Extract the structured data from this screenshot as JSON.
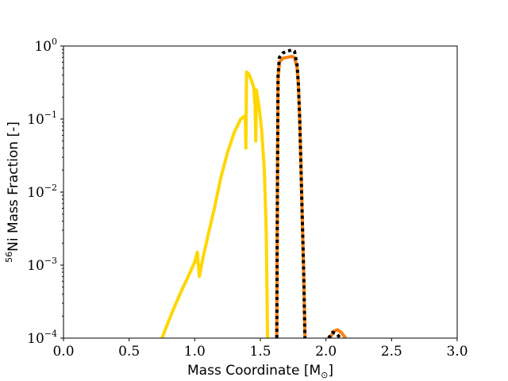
{
  "chart_data": {
    "type": "line",
    "xlabel": "Mass Coordinate [M",
    "xlabel_sub": "⊙",
    "xlabel_close": "]",
    "ylabel_sup": "56",
    "ylabel": "Ni Mass Fraction [-]",
    "xlim": [
      0.0,
      3.0
    ],
    "ylim": [
      0.0001,
      1
    ],
    "yscale": "log",
    "grid": false,
    "x_ticks": [
      {
        "value": 0.0,
        "label": "0.0"
      },
      {
        "value": 0.5,
        "label": "0.5"
      },
      {
        "value": 1.0,
        "label": "1.0"
      },
      {
        "value": 1.5,
        "label": "1.5"
      },
      {
        "value": 2.0,
        "label": "2.0"
      },
      {
        "value": 2.5,
        "label": "2.5"
      },
      {
        "value": 3.0,
        "label": "3.0"
      }
    ],
    "y_ticks": [
      {
        "value": 0.0001,
        "base": "10",
        "exp": "−4"
      },
      {
        "value": 0.001,
        "base": "10",
        "exp": "−3"
      },
      {
        "value": 0.01,
        "base": "10",
        "exp": "−2"
      },
      {
        "value": 0.1,
        "base": "10",
        "exp": "−1"
      },
      {
        "value": 1,
        "base": "10",
        "exp": "0"
      }
    ],
    "series": [
      {
        "color": "#FFD700",
        "style": "solid",
        "points": [
          [
            0.75,
            0.0001
          ],
          [
            0.8,
            0.00017
          ],
          [
            0.85,
            0.00028
          ],
          [
            0.9,
            0.00045
          ],
          [
            0.95,
            0.0007
          ],
          [
            1.0,
            0.0011
          ],
          [
            1.02,
            0.0015
          ],
          [
            1.035,
            0.0007
          ],
          [
            1.06,
            0.0012
          ],
          [
            1.1,
            0.0025
          ],
          [
            1.15,
            0.006
          ],
          [
            1.2,
            0.016
          ],
          [
            1.25,
            0.035
          ],
          [
            1.3,
            0.065
          ],
          [
            1.35,
            0.1
          ],
          [
            1.38,
            0.11
          ],
          [
            1.385,
            0.11
          ],
          [
            1.39,
            0.04
          ],
          [
            1.395,
            0.44
          ],
          [
            1.41,
            0.42
          ],
          [
            1.43,
            0.35
          ],
          [
            1.45,
            0.27
          ],
          [
            1.46,
            0.15
          ],
          [
            1.465,
            0.05
          ],
          [
            1.47,
            0.25
          ],
          [
            1.49,
            0.15
          ],
          [
            1.51,
            0.07
          ],
          [
            1.53,
            0.02
          ],
          [
            1.545,
            0.003
          ],
          [
            1.555,
            0.0001
          ]
        ]
      },
      {
        "color": "#FF7F0E",
        "style": "solid",
        "points": [
          [
            1.625,
            0.0001
          ],
          [
            1.63,
            0.01
          ],
          [
            1.635,
            0.35
          ],
          [
            1.645,
            0.6
          ],
          [
            1.67,
            0.68
          ],
          [
            1.7,
            0.7
          ],
          [
            1.74,
            0.72
          ],
          [
            1.76,
            0.7
          ],
          [
            1.78,
            0.5
          ],
          [
            1.79,
            0.3
          ],
          [
            1.8,
            0.1
          ],
          [
            1.81,
            0.02
          ],
          [
            1.82,
            0.004
          ],
          [
            1.83,
            0.0008
          ],
          [
            1.84,
            0.0001
          ]
        ]
      },
      {
        "color": "#FF7F0E",
        "style": "solid",
        "points": [
          [
            2.03,
            0.0001
          ],
          [
            2.06,
            0.000125
          ],
          [
            2.09,
            0.00013
          ],
          [
            2.12,
            0.000118
          ],
          [
            2.15,
            0.0001
          ]
        ]
      },
      {
        "color": "#000000",
        "style": "dotted",
        "points": [
          [
            1.625,
            0.0001
          ],
          [
            1.63,
            0.01
          ],
          [
            1.635,
            0.4
          ],
          [
            1.645,
            0.7
          ],
          [
            1.67,
            0.8
          ],
          [
            1.7,
            0.85
          ],
          [
            1.74,
            0.88
          ],
          [
            1.76,
            0.85
          ],
          [
            1.78,
            0.55
          ],
          [
            1.79,
            0.3
          ],
          [
            1.8,
            0.1
          ],
          [
            1.81,
            0.02
          ],
          [
            1.82,
            0.004
          ],
          [
            1.83,
            0.0008
          ],
          [
            1.84,
            0.0001
          ]
        ]
      },
      {
        "color": "#000000",
        "style": "dotted",
        "points": [
          [
            2.02,
            0.0001
          ],
          [
            2.05,
            0.00012
          ],
          [
            2.08,
            0.000115
          ],
          [
            2.11,
            0.0001
          ]
        ]
      }
    ]
  }
}
